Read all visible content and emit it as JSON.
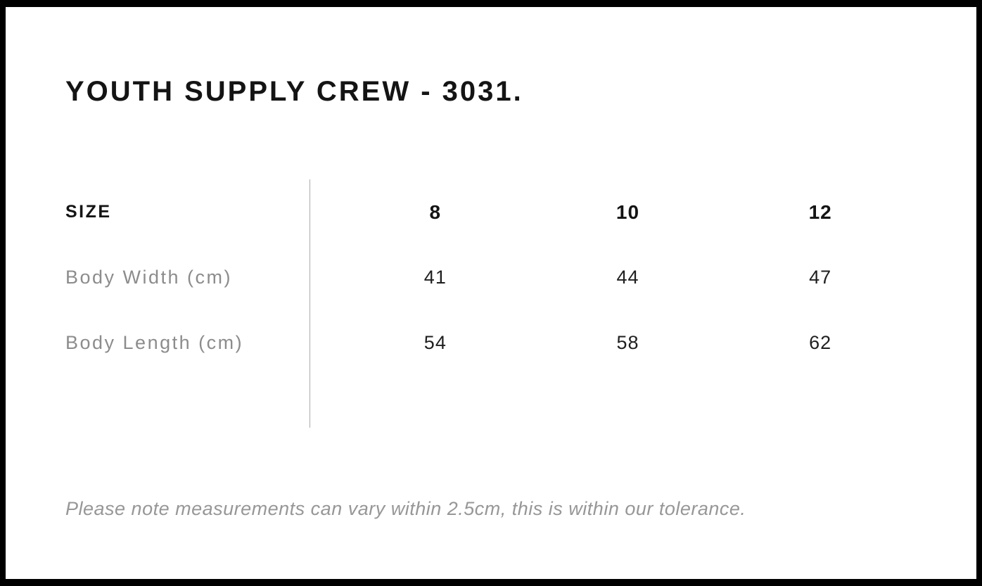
{
  "header": {
    "title": "YOUTH SUPPLY CREW - 3031."
  },
  "size_chart": {
    "size_label": "SIZE",
    "sizes": [
      "8",
      "10",
      "12"
    ],
    "rows": [
      {
        "label": "Body Width (cm)",
        "values": [
          "41",
          "44",
          "47"
        ]
      },
      {
        "label": "Body Length (cm)",
        "values": [
          "54",
          "58",
          "62"
        ]
      }
    ]
  },
  "footer": {
    "note": "Please note measurements can vary within 2.5cm, this is within our tolerance."
  },
  "colors": {
    "frame_border": "#000000",
    "background": "#ffffff",
    "heading_text": "#141414",
    "value_text": "#1f1f1f",
    "label_text": "#8c8c8c",
    "divider_line": "#ababab",
    "note_text": "#979797"
  },
  "chart_data": {
    "type": "table",
    "title": "YOUTH SUPPLY CREW - 3031.",
    "columns": [
      "SIZE",
      "8",
      "10",
      "12"
    ],
    "rows": [
      [
        "Body Width (cm)",
        41,
        44,
        47
      ],
      [
        "Body Length (cm)",
        54,
        58,
        62
      ]
    ],
    "footnote": "Please note measurements can vary within 2.5cm, this is within our tolerance."
  }
}
